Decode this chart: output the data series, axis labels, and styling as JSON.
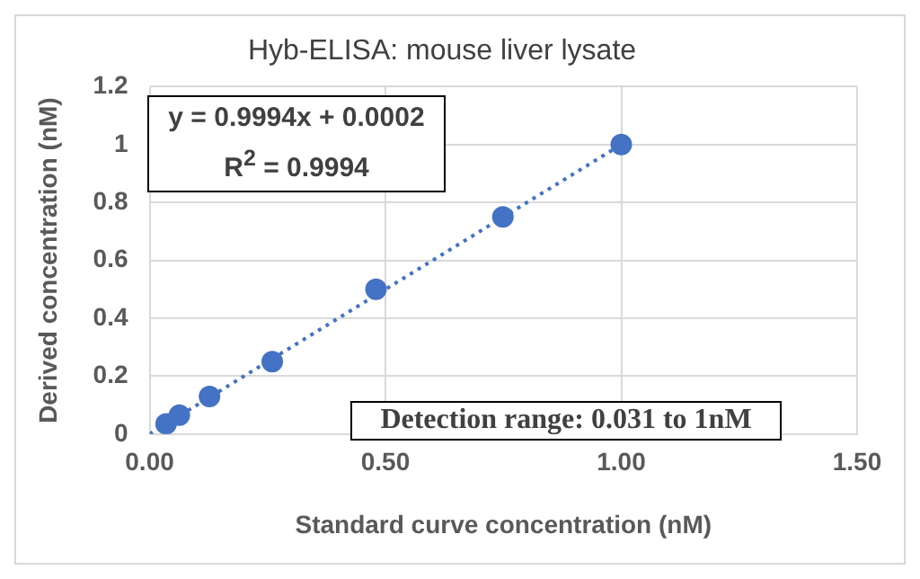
{
  "chart_data": {
    "type": "scatter",
    "title": "Hyb-ELISA: mouse liver lysate",
    "xlabel": "Standard curve concentration (nM)",
    "ylabel": "Derived concentration (nM)",
    "annotations": [
      "y = 0.9994x + 0.0002\nR$^{2}$ = 0.9994",
      "Detection range: 0.031 to 1nM"
    ],
    "series": [
      {
        "color": "#4472c4",
        "marker": "circle",
        "x": [
          0.035,
          0.063,
          0.127,
          0.26,
          0.48,
          0.749,
          1.0
        ],
        "values": [
          0.035,
          0.065,
          0.13,
          0.25,
          0.5,
          0.75,
          1.0
        ]
      },
      {
        "type": "line",
        "color": "#4472c4",
        "marker": "none",
        "line_style": "dotted",
        "x": [
          0,
          1.0
        ],
        "values": [
          0,
          1.0
        ]
      }
    ],
    "xlim": [
      0,
      1.5
    ],
    "xticks": [
      {
        "value": 0,
        "label": "0.00"
      },
      {
        "value": 0.5,
        "label": "0.50"
      },
      {
        "value": 1,
        "label": "1.00"
      },
      {
        "value": 1.5,
        "label": "1.50"
      }
    ],
    "ylim": [
      0,
      1.2
    ],
    "yticks": [
      0,
      0.2,
      0.4,
      0.6,
      0.8,
      1,
      1.2
    ],
    "grid": true,
    "legend": false
  }
}
